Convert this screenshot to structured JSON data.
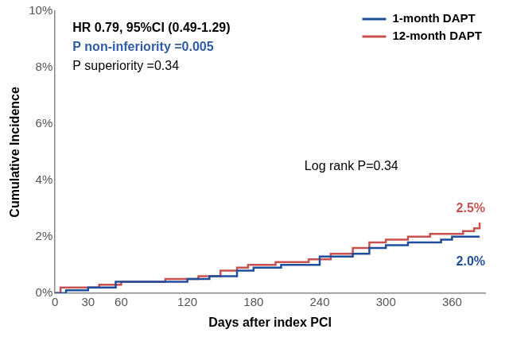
{
  "chart_data": {
    "type": "line",
    "x_label": "Days after index PCI",
    "y_label": "Cumulative Incidence",
    "x": [
      0,
      5,
      10,
      30,
      40,
      55,
      60,
      100,
      120,
      130,
      140,
      150,
      165,
      175,
      180,
      200,
      205,
      230,
      240,
      250,
      270,
      285,
      300,
      320,
      340,
      350,
      360,
      370,
      380,
      385
    ],
    "series": [
      {
        "name": "1-month DAPT",
        "color": "#1f4e9c",
        "line_style": "step",
        "marker": "none",
        "values": [
          0,
          0,
          0.1,
          0.2,
          0.2,
          0.4,
          0.4,
          0.4,
          0.5,
          0.5,
          0.6,
          0.6,
          0.8,
          0.8,
          0.9,
          0.9,
          1.0,
          1.0,
          1.3,
          1.3,
          1.4,
          1.6,
          1.7,
          1.8,
          1.8,
          1.9,
          2.0,
          2.0,
          2.0,
          2.0
        ]
      },
      {
        "name": "12-month DAPT",
        "color": "#c8504f",
        "line_style": "step",
        "marker": "none",
        "values": [
          0,
          0.2,
          0.2,
          0.2,
          0.3,
          0.3,
          0.4,
          0.5,
          0.5,
          0.6,
          0.6,
          0.8,
          0.9,
          1.0,
          1.0,
          1.1,
          1.1,
          1.2,
          1.2,
          1.4,
          1.6,
          1.8,
          1.9,
          2.0,
          2.1,
          2.1,
          2.1,
          2.2,
          2.3,
          2.5
        ]
      }
    ],
    "xlim": [
      0,
      390
    ],
    "xticks": [
      0,
      30,
      60,
      120,
      180,
      240,
      300,
      360
    ],
    "ylim": [
      0,
      10
    ],
    "yticks": [
      {
        "value": 0,
        "label": "0%"
      },
      {
        "value": 2,
        "label": "2%"
      },
      {
        "value": 4,
        "label": "4%"
      },
      {
        "value": 6,
        "label": "6%"
      },
      {
        "value": 8,
        "label": "8%"
      },
      {
        "value": 10,
        "label": "10%"
      }
    ],
    "grid": false,
    "legend": "upper right",
    "annotations": [
      {
        "text": "HR 0.79, 95%CI (0.49-1.29)",
        "color": "#000000"
      },
      {
        "text": "P non-inferiority =0.005",
        "color": "#2e5aa8"
      },
      {
        "text": "P superiority =0.34",
        "color": "#000000"
      },
      {
        "text": "Log rank P=0.34",
        "color": "#000000"
      },
      {
        "text": "2.5%",
        "color": "#c8504f"
      },
      {
        "text": "2.0%",
        "color": "#1f4e9c"
      }
    ]
  }
}
